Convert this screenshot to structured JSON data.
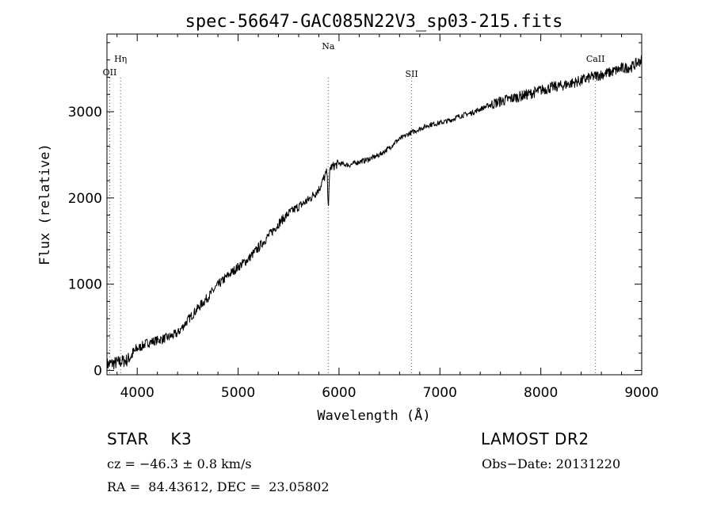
{
  "chart_data": {
    "type": "line",
    "title": "spec-56647-GAC085N22V3_sp03-215.fits",
    "xlabel": "Wavelength (Å)",
    "ylabel": "Flux (relative)",
    "xlim": [
      3700,
      9000
    ],
    "ylim": [
      -50,
      3900
    ],
    "xticks": [
      4000,
      5000,
      6000,
      7000,
      8000,
      9000
    ],
    "yticks": [
      0,
      1000,
      2000,
      3000
    ],
    "grid": false,
    "series": [
      {
        "x": [
          3700,
          3800,
          3900,
          4000,
          4100,
          4200,
          4300,
          4400,
          4500,
          4600,
          4700,
          4800,
          4900,
          5000,
          5100,
          5200,
          5300,
          5400,
          5500,
          5600,
          5700,
          5800,
          5880,
          5895,
          5910,
          6000,
          6100,
          6200,
          6300,
          6400,
          6500,
          6560,
          6600,
          6700,
          6800,
          6900,
          7000,
          7100,
          7200,
          7300,
          7400,
          7500,
          7600,
          7700,
          7800,
          7900,
          8000,
          8100,
          8200,
          8300,
          8400,
          8500,
          8600,
          8700,
          8800,
          8900,
          9000
        ],
        "y": [
          70,
          90,
          120,
          250,
          320,
          350,
          380,
          430,
          580,
          720,
          850,
          990,
          1100,
          1200,
          1290,
          1420,
          1560,
          1700,
          1820,
          1900,
          1980,
          2100,
          2300,
          1900,
          2350,
          2400,
          2380,
          2420,
          2450,
          2500,
          2580,
          2650,
          2680,
          2750,
          2800,
          2850,
          2870,
          2900,
          2950,
          2980,
          3030,
          3080,
          3120,
          3150,
          3180,
          3210,
          3250,
          3280,
          3300,
          3330,
          3360,
          3400,
          3430,
          3460,
          3500,
          3520,
          3600
        ]
      }
    ],
    "lines": [
      {
        "label": "OII",
        "x": 3727
      },
      {
        "label": "Hη",
        "x": 3835
      },
      {
        "label": "Na",
        "x": 5893
      },
      {
        "label": "SII",
        "x": 6720
      },
      {
        "label": "CaII",
        "x": 8542
      }
    ]
  },
  "info": {
    "class": "STAR",
    "subclass": "K3",
    "survey": "LAMOST DR2",
    "cz": "cz = −46.3 ± 0.8 km/s",
    "obs_date": "Obs−Date: 20131220",
    "coords": "RA =  84.43612, DEC =  23.05802"
  }
}
